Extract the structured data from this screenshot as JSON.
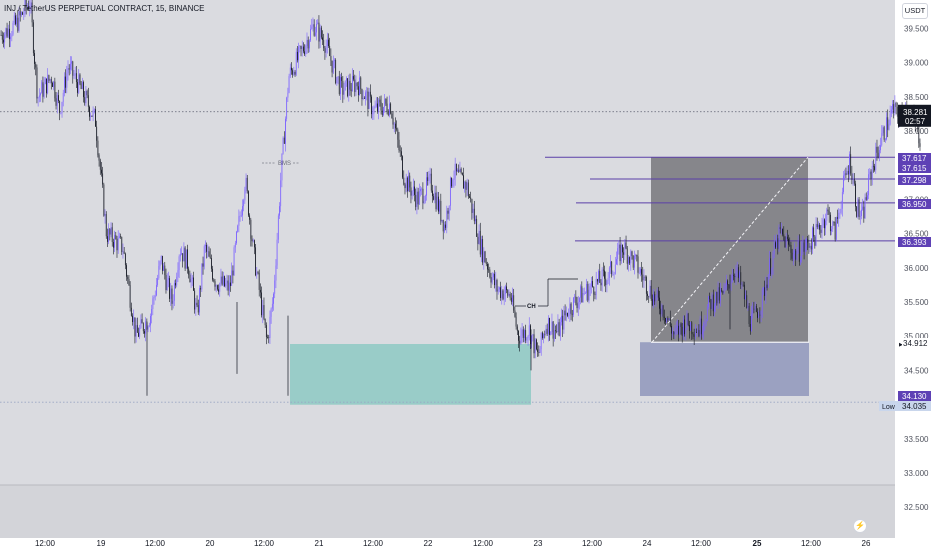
{
  "header": {
    "title": "INJ / TetherUS PERPETUAL CONTRACT, 15, BINANCE",
    "currency": "USDT"
  },
  "chart_data": {
    "type": "candlestick",
    "ylim": [
      32.1,
      40.0
    ],
    "price_ticks": [
      "32.500",
      "33.000",
      "33.500",
      "34.000",
      "34.500",
      "35.000",
      "35.500",
      "36.000",
      "36.500",
      "37.000",
      "37.500",
      "38.000",
      "38.500",
      "39.000",
      "39.500"
    ],
    "time_labels": [
      "12:00",
      "19",
      "12:00",
      "20",
      "12:00",
      "21",
      "12:00",
      "22",
      "12:00",
      "23",
      "12:00",
      "24",
      "12:00",
      "25",
      "12:00",
      "26"
    ],
    "time_labels_bold": [
      "25"
    ],
    "last_price": {
      "value": "38.281",
      "countdown": "02:57"
    },
    "price_tags": [
      {
        "value": "37.617",
        "style": "purple"
      },
      {
        "value": "37.615",
        "style": "purple"
      },
      {
        "value": "37.298",
        "style": "purple"
      },
      {
        "value": "36.950",
        "style": "purple"
      },
      {
        "value": "36.393",
        "style": "purple"
      },
      {
        "value": "34.912",
        "style": "light"
      },
      {
        "value": "34.130",
        "style": "purple"
      },
      {
        "value": "34.035",
        "style": "lowtag",
        "label": "Low"
      }
    ],
    "annotations": {
      "bms": "BMS",
      "ch": "CH"
    },
    "colors": {
      "candle_up": "#7b61ff",
      "candle_down": "#131722",
      "level_line": "#5b3fa8",
      "teal_zone": "rgba(88,189,175,0.5)",
      "gray_zone": "rgba(110,110,115,0.78)",
      "blue_zone": "rgba(130,138,180,0.72)",
      "tag_purple": "#5e41b5",
      "tag_black": "#131722",
      "low_tag": "#c9d6ec"
    },
    "anchors": [
      {
        "t": 0.0,
        "p": 39.6
      },
      {
        "t": 0.08,
        "p": 39.4
      },
      {
        "t": 0.22,
        "p": 39.55
      },
      {
        "t": 0.35,
        "p": 39.9
      },
      {
        "t": 0.42,
        "p": 38.5
      },
      {
        "t": 0.55,
        "p": 38.8
      },
      {
        "t": 0.62,
        "p": 38.3
      },
      {
        "t": 0.7,
        "p": 38.95
      },
      {
        "t": 0.82,
        "p": 38.6
      },
      {
        "t": 0.95,
        "p": 38.15
      },
      {
        "t": 1.05,
        "p": 36.5
      },
      {
        "t": 1.2,
        "p": 36.3
      },
      {
        "t": 1.32,
        "p": 35.0
      },
      {
        "t": 1.45,
        "p": 35.3
      },
      {
        "t": 1.55,
        "p": 36.1
      },
      {
        "t": 1.65,
        "p": 35.5
      },
      {
        "t": 1.72,
        "p": 36.3
      },
      {
        "t": 1.8,
        "p": 36.05
      },
      {
        "t": 1.88,
        "p": 35.3
      },
      {
        "t": 1.95,
        "p": 36.3
      },
      {
        "t": 2.05,
        "p": 35.8
      },
      {
        "t": 2.18,
        "p": 35.7
      },
      {
        "t": 2.25,
        "p": 36.5
      },
      {
        "t": 2.32,
        "p": 37.3
      },
      {
        "t": 2.4,
        "p": 36.2
      },
      {
        "t": 2.52,
        "p": 34.9
      },
      {
        "t": 2.58,
        "p": 35.6
      },
      {
        "t": 2.65,
        "p": 37.4
      },
      {
        "t": 2.72,
        "p": 38.8
      },
      {
        "t": 2.85,
        "p": 39.2
      },
      {
        "t": 2.95,
        "p": 39.55
      },
      {
        "t": 3.05,
        "p": 39.3
      },
      {
        "t": 3.2,
        "p": 38.6
      },
      {
        "t": 3.35,
        "p": 38.7
      },
      {
        "t": 3.5,
        "p": 38.3
      },
      {
        "t": 3.65,
        "p": 38.4
      },
      {
        "t": 3.78,
        "p": 37.3
      },
      {
        "t": 3.9,
        "p": 37.0
      },
      {
        "t": 4.02,
        "p": 37.25
      },
      {
        "t": 4.15,
        "p": 36.6
      },
      {
        "t": 4.22,
        "p": 37.4
      },
      {
        "t": 4.35,
        "p": 37.2
      },
      {
        "t": 4.48,
        "p": 36.3
      },
      {
        "t": 4.62,
        "p": 35.7
      },
      {
        "t": 4.75,
        "p": 35.6
      },
      {
        "t": 4.82,
        "p": 35.0
      },
      {
        "t": 4.92,
        "p": 35.1
      },
      {
        "t": 5.0,
        "p": 34.7
      },
      {
        "t": 5.08,
        "p": 35.2
      },
      {
        "t": 5.18,
        "p": 35.05
      },
      {
        "t": 5.28,
        "p": 35.4
      },
      {
        "t": 5.4,
        "p": 35.6
      },
      {
        "t": 5.52,
        "p": 35.75
      },
      {
        "t": 5.65,
        "p": 35.9
      },
      {
        "t": 5.78,
        "p": 36.3
      },
      {
        "t": 5.9,
        "p": 36.05
      },
      {
        "t": 6.05,
        "p": 35.6
      },
      {
        "t": 6.15,
        "p": 35.4
      },
      {
        "t": 6.25,
        "p": 35.0
      },
      {
        "t": 6.35,
        "p": 35.2
      },
      {
        "t": 6.48,
        "p": 35.1
      },
      {
        "t": 6.58,
        "p": 35.5
      },
      {
        "t": 6.7,
        "p": 35.6
      },
      {
        "t": 6.8,
        "p": 36.0
      },
      {
        "t": 6.88,
        "p": 35.65
      },
      {
        "t": 6.95,
        "p": 35.2
      },
      {
        "t": 7.05,
        "p": 35.5
      },
      {
        "t": 7.12,
        "p": 36.0
      },
      {
        "t": 7.22,
        "p": 36.5
      },
      {
        "t": 7.35,
        "p": 36.2
      },
      {
        "t": 7.45,
        "p": 36.3
      },
      {
        "t": 7.55,
        "p": 36.5
      },
      {
        "t": 7.65,
        "p": 36.8
      },
      {
        "t": 7.72,
        "p": 36.5
      },
      {
        "t": 7.8,
        "p": 37.2
      },
      {
        "t": 7.86,
        "p": 37.6
      },
      {
        "t": 7.92,
        "p": 36.9
      },
      {
        "t": 7.97,
        "p": 36.7
      },
      {
        "t": 8.05,
        "p": 37.4
      },
      {
        "t": 8.15,
        "p": 37.9
      },
      {
        "t": 8.25,
        "p": 38.3
      },
      {
        "t": 8.32,
        "p": 38.2
      },
      {
        "t": 8.38,
        "p": 38.35
      },
      {
        "t": 8.45,
        "p": 38.1
      },
      {
        "t": 8.5,
        "p": 37.9
      }
    ]
  }
}
